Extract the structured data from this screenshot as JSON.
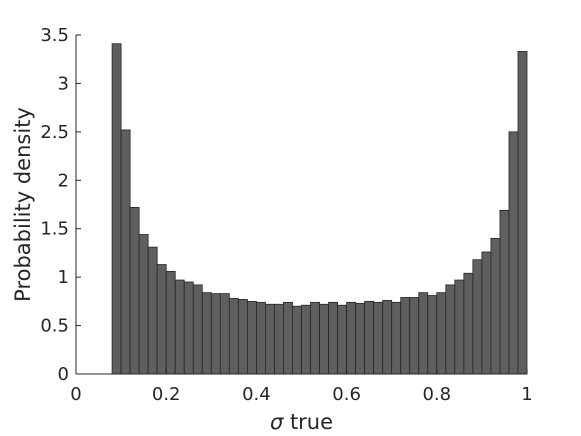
{
  "chart_data": {
    "type": "bar",
    "xlabel_symbol": "σ",
    "xlabel_text": " true",
    "ylabel": "Probability density",
    "xlim": [
      0,
      1
    ],
    "ylim": [
      0,
      3.5
    ],
    "xticks": [
      "0",
      "0.2",
      "0.4",
      "0.6",
      "0.8",
      "1"
    ],
    "yticks": [
      "0",
      "0.5",
      "1",
      "1.5",
      "2",
      "2.5",
      "3",
      "3.5"
    ],
    "bin_start": 0.08,
    "bin_width": 0.02,
    "values": [
      3.41,
      2.52,
      1.72,
      1.44,
      1.31,
      1.13,
      1.06,
      0.97,
      0.95,
      0.92,
      0.84,
      0.83,
      0.83,
      0.78,
      0.77,
      0.75,
      0.74,
      0.72,
      0.72,
      0.74,
      0.7,
      0.71,
      0.74,
      0.72,
      0.74,
      0.71,
      0.74,
      0.73,
      0.75,
      0.74,
      0.76,
      0.74,
      0.79,
      0.79,
      0.84,
      0.81,
      0.84,
      0.92,
      0.97,
      1.04,
      1.18,
      1.26,
      1.4,
      1.69,
      2.5,
      3.33
    ],
    "bar_color": "#5f5f5f",
    "bar_edge": "#262626",
    "axis_color": "#262626"
  }
}
